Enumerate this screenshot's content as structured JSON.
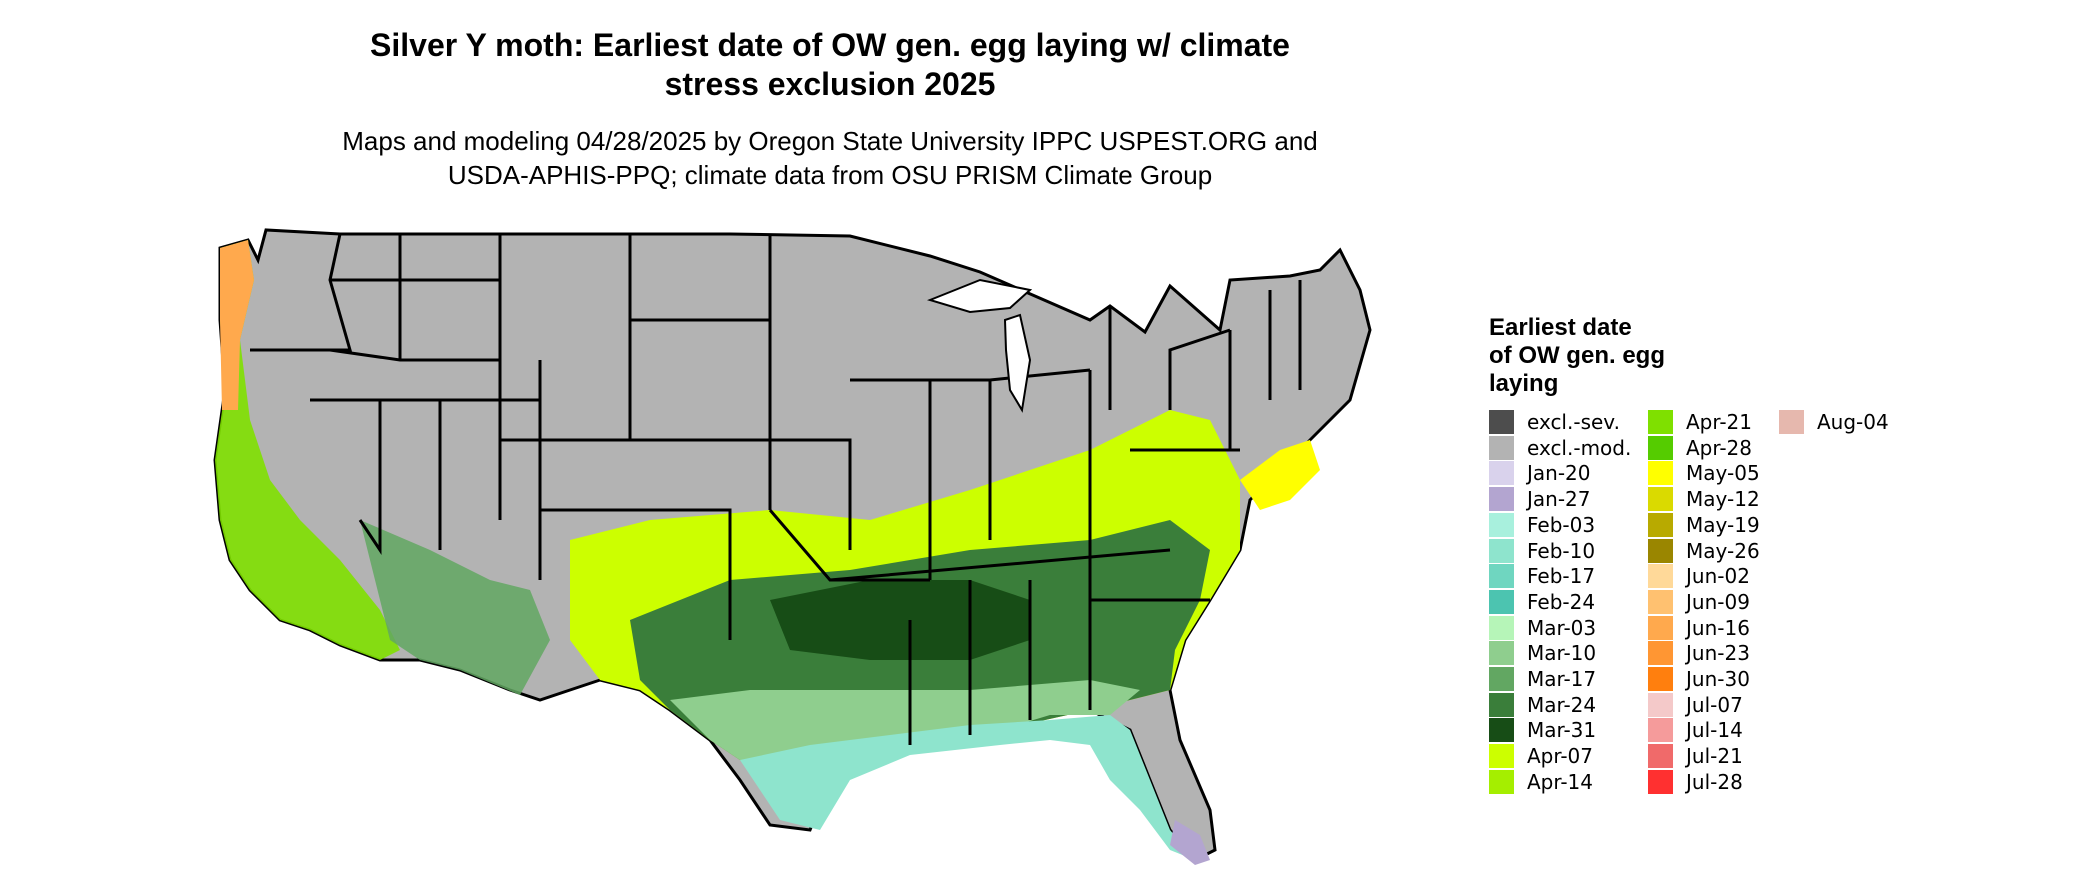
{
  "title_line1": "Silver Y moth: Earliest date of OW gen. egg laying w/ climate",
  "title_line2": "stress exclusion 2025",
  "subtitle_line1": "Maps and modeling 04/28/2025 by Oregon State University IPPC USPEST.ORG and",
  "subtitle_line2": "USDA-APHIS-PPQ; climate data from OSU PRISM Climate Group",
  "legend": {
    "title_line1": "Earliest date",
    "title_line2": "of OW gen. egg",
    "title_line3": "laying",
    "columns": [
      [
        {
          "label": "excl.-sev.",
          "color": "#4d4d4d"
        },
        {
          "label": "excl.-mod.",
          "color": "#b3b3b3"
        },
        {
          "label": "Jan-20",
          "color": "#d9d2ec"
        },
        {
          "label": "Jan-27",
          "color": "#b3a5d0"
        },
        {
          "label": "Feb-03",
          "color": "#a8f0dd"
        },
        {
          "label": "Feb-10",
          "color": "#8ee4cd"
        },
        {
          "label": "Feb-17",
          "color": "#6fd6c0"
        },
        {
          "label": "Feb-24",
          "color": "#4cc4b0"
        },
        {
          "label": "Mar-03",
          "color": "#b6f5b8"
        },
        {
          "label": "Mar-10",
          "color": "#8fce8e"
        },
        {
          "label": "Mar-17",
          "color": "#62a762"
        },
        {
          "label": "Mar-24",
          "color": "#3a7e3a"
        },
        {
          "label": "Mar-31",
          "color": "#174d16"
        },
        {
          "label": "Apr-07",
          "color": "#ccff00"
        },
        {
          "label": "Apr-14",
          "color": "#a5ee00"
        }
      ],
      [
        {
          "label": "Apr-21",
          "color": "#7fe000"
        },
        {
          "label": "Apr-28",
          "color": "#55cc00"
        },
        {
          "label": "May-05",
          "color": "#ffff00"
        },
        {
          "label": "May-12",
          "color": "#dada00"
        },
        {
          "label": "May-19",
          "color": "#b8aa00"
        },
        {
          "label": "May-26",
          "color": "#9a8600"
        },
        {
          "label": "Jun-02",
          "color": "#ffd999"
        },
        {
          "label": "Jun-09",
          "color": "#ffc170"
        },
        {
          "label": "Jun-16",
          "color": "#ffa94d"
        },
        {
          "label": "Jun-23",
          "color": "#ff9633"
        },
        {
          "label": "Jun-30",
          "color": "#ff7f0e"
        },
        {
          "label": "Jul-07",
          "color": "#f4c9c9"
        },
        {
          "label": "Jul-14",
          "color": "#f59b9b"
        },
        {
          "label": "Jul-21",
          "color": "#f06a6a"
        },
        {
          "label": "Jul-28",
          "color": "#ff3030"
        }
      ],
      [
        {
          "label": "Aug-04",
          "color": "#e6b8ae"
        }
      ]
    ]
  }
}
